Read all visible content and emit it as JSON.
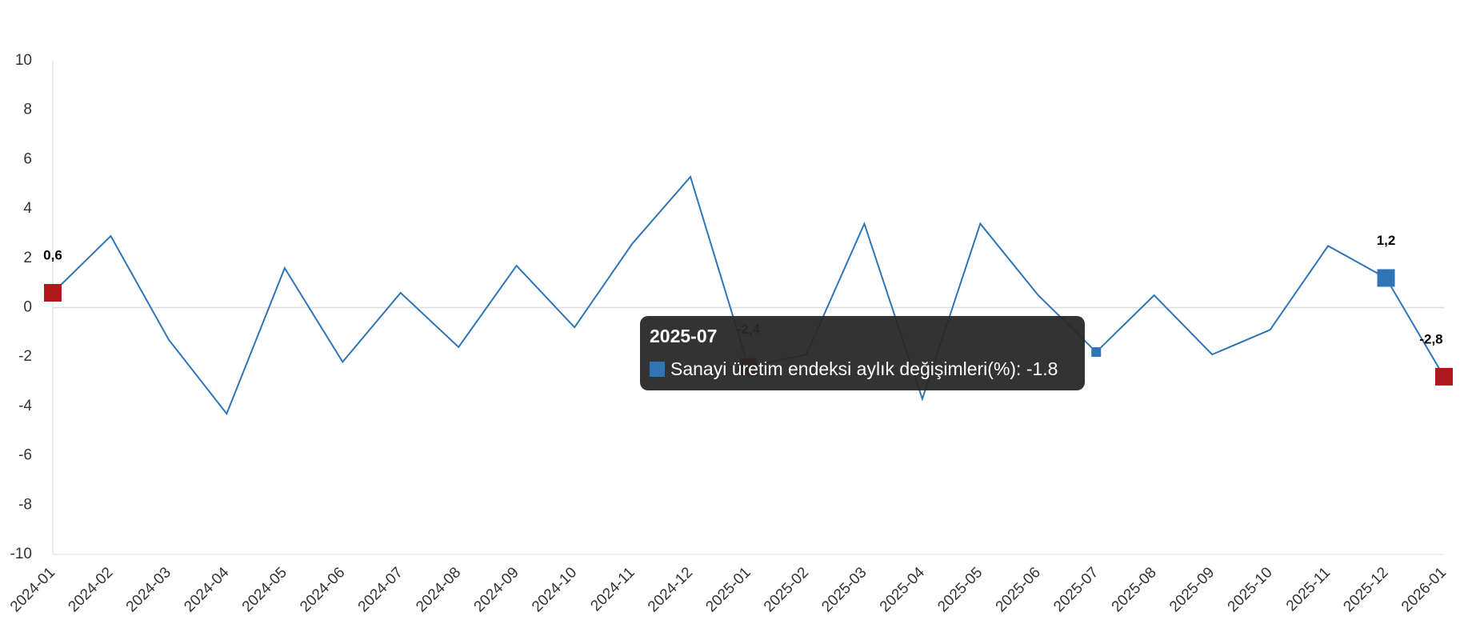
{
  "chart_data": {
    "type": "line",
    "categories": [
      "2024-01",
      "2024-02",
      "2024-03",
      "2024-04",
      "2024-05",
      "2024-06",
      "2024-07",
      "2024-08",
      "2024-09",
      "2024-10",
      "2024-11",
      "2024-12",
      "2025-01",
      "2025-02",
      "2025-03",
      "2025-04",
      "2025-05",
      "2025-06",
      "2025-07",
      "2025-08",
      "2025-09",
      "2025-10",
      "2025-11",
      "2025-12",
      "2026-01"
    ],
    "values": [
      0.6,
      2.9,
      -1.3,
      -4.3,
      1.6,
      -2.2,
      0.6,
      -1.6,
      1.7,
      -0.8,
      2.6,
      5.3,
      -2.4,
      -1.9,
      3.4,
      -3.7,
      3.4,
      0.5,
      -1.8,
      0.5,
      -1.9,
      -0.9,
      2.5,
      1.2,
      -2.8
    ],
    "value_labels": [
      "0,6",
      null,
      null,
      null,
      null,
      null,
      null,
      null,
      null,
      null,
      null,
      null,
      "-2,4",
      null,
      null,
      null,
      null,
      null,
      null,
      null,
      null,
      null,
      null,
      "1,2",
      "-2,8"
    ],
    "point_colors": [
      "#b0171f",
      null,
      null,
      null,
      null,
      null,
      null,
      null,
      null,
      null,
      null,
      null,
      "#b0171f",
      null,
      null,
      null,
      null,
      null,
      "#2e75b6",
      null,
      null,
      null,
      null,
      "#2e75b6",
      "#b0171f"
    ],
    "color": "#2e75b6",
    "ylim": [
      -10,
      10
    ],
    "yticks": [
      -10,
      -8,
      -6,
      -4,
      -2,
      0,
      2,
      4,
      6,
      8,
      10
    ],
    "tooltip": {
      "title": "2025-07",
      "text": "Sanayi üretim endeksi aylık değişimleri(%): -1.8"
    }
  }
}
